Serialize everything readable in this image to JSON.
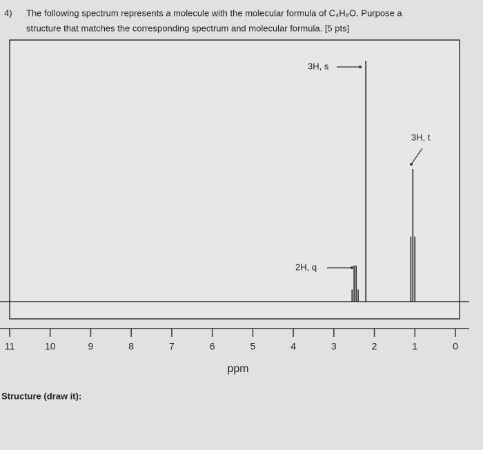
{
  "question": {
    "number": "4)",
    "lines": [
      "The following spectrum represents a molecule with the molecular formula of C₄H₈O. Purpose a",
      "structure that matches the corresponding spectrum and molecular formula. [5 pts]"
    ]
  },
  "chart_data": {
    "type": "spectrum",
    "xlabel": "ppm",
    "x": [
      2.55,
      2.5,
      2.45,
      2.4,
      2.21,
      1.1,
      1.05,
      1.0
    ],
    "values": [
      5,
      15,
      15,
      5,
      100,
      27,
      55,
      27
    ],
    "xlim": [
      11,
      0
    ],
    "ylim": [
      0,
      100
    ],
    "xticks": [
      11,
      10,
      9,
      8,
      7,
      6,
      5,
      4,
      3,
      2,
      1,
      0
    ],
    "annotations": [
      "3H, s",
      "3H, t",
      "2H, q"
    ],
    "color": "#222"
  },
  "footer": "Structure (draw it):"
}
